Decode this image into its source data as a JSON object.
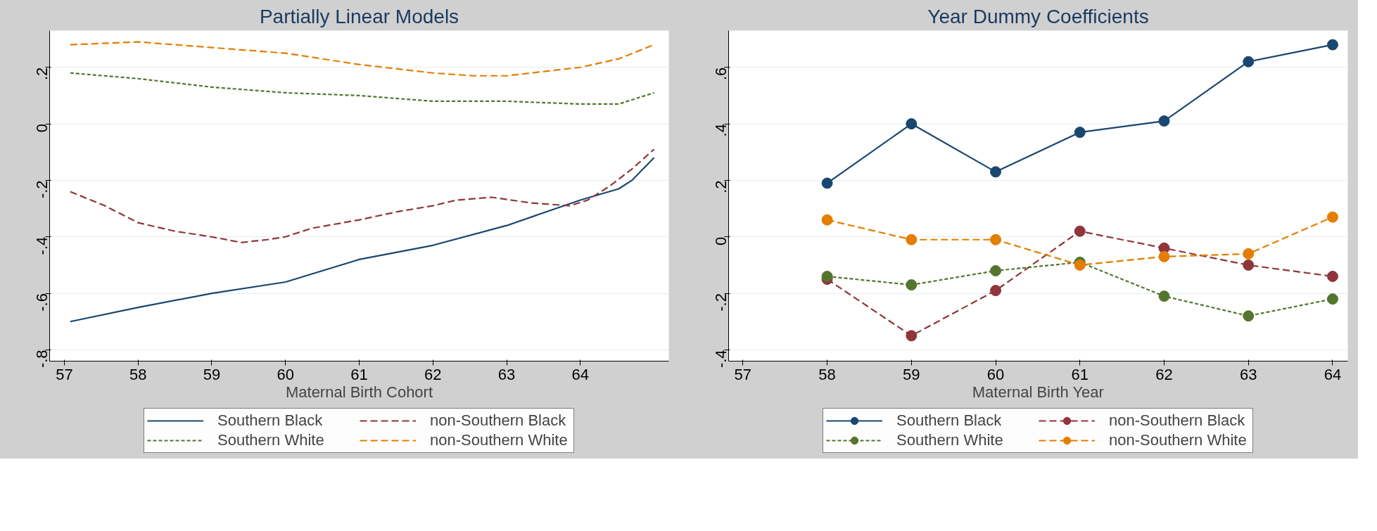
{
  "chart_data": [
    {
      "type": "line",
      "title": "Partially Linear Models",
      "xlabel": "Maternal Birth Cohort",
      "xlim": [
        56.8,
        65.2
      ],
      "xticks": [
        57,
        58,
        59,
        60,
        61,
        62,
        63,
        64
      ],
      "ylim": [
        -0.84,
        0.33
      ],
      "yticks": [
        {
          "value": -0.8,
          "label": "-.8"
        },
        {
          "value": -0.6,
          "label": "-.6"
        },
        {
          "value": -0.4,
          "label": "-.4"
        },
        {
          "value": -0.2,
          "label": "-.2"
        },
        0,
        {
          "value": 0.2,
          "label": ".2"
        }
      ],
      "grid": "y",
      "legend": "bottom",
      "marker": "none",
      "series": [
        {
          "name": "Southern Black",
          "color": "#1a476f",
          "line_style": "solid",
          "x": [
            57.08,
            58,
            59,
            60,
            61,
            62,
            63,
            64,
            64.52,
            64.7,
            64.85,
            65.0
          ],
          "values": [
            -0.7,
            -0.65,
            -0.6,
            -0.56,
            -0.48,
            -0.43,
            -0.36,
            -0.27,
            -0.23,
            -0.2,
            -0.16,
            -0.12
          ]
        },
        {
          "name": "non-Southern Black",
          "color": "#90353b",
          "line_style": "dashed",
          "x": [
            57.08,
            57.55,
            58,
            58.5,
            59,
            59.4,
            59.75,
            60,
            60.35,
            61,
            61.54,
            62,
            62.32,
            62.8,
            63.33,
            63.86,
            64.1,
            64.4,
            64.7,
            65.0
          ],
          "values": [
            -0.24,
            -0.29,
            -0.35,
            -0.38,
            -0.4,
            -0.42,
            -0.41,
            -0.4,
            -0.37,
            -0.34,
            -0.31,
            -0.29,
            -0.27,
            -0.26,
            -0.28,
            -0.29,
            -0.27,
            -0.22,
            -0.16,
            -0.09
          ]
        },
        {
          "name": "Southern White",
          "color": "#55752f",
          "line_style": "dotted",
          "x": [
            57.08,
            58,
            59,
            60,
            61,
            62,
            63,
            64,
            64.52,
            65.0
          ],
          "values": [
            0.18,
            0.16,
            0.13,
            0.11,
            0.1,
            0.08,
            0.08,
            0.07,
            0.07,
            0.11
          ]
        },
        {
          "name": "non-Southern White",
          "color": "#e37e00",
          "line_style": "dashed",
          "x": [
            57.08,
            58,
            59,
            60,
            61,
            62,
            62.55,
            63,
            64,
            64.52,
            65.0
          ],
          "values": [
            0.28,
            0.29,
            0.27,
            0.25,
            0.21,
            0.18,
            0.17,
            0.17,
            0.2,
            0.23,
            0.28
          ]
        }
      ]
    },
    {
      "type": "line",
      "title": "Year Dummy Coefficients",
      "xlabel": "Maternal Birth Year",
      "xlim": [
        56.83,
        64.18
      ],
      "xticks": [
        57,
        58,
        59,
        60,
        61,
        62,
        63,
        64
      ],
      "ylim": [
        -0.44,
        0.73
      ],
      "yticks": [
        {
          "value": -0.4,
          "label": "-.4"
        },
        {
          "value": -0.2,
          "label": "-.2"
        },
        0,
        {
          "value": 0.2,
          "label": ".2"
        },
        {
          "value": 0.4,
          "label": ".4"
        },
        {
          "value": 0.6,
          "label": ".6"
        }
      ],
      "grid": "y",
      "legend": "bottom",
      "marker": "circle",
      "x": [
        58,
        59,
        60,
        61,
        62,
        63,
        64
      ],
      "series": [
        {
          "name": "Southern Black",
          "color": "#1a476f",
          "line_style": "solid",
          "values": [
            0.19,
            0.4,
            0.23,
            0.37,
            0.41,
            0.62,
            0.68
          ]
        },
        {
          "name": "non-Southern Black",
          "color": "#90353b",
          "line_style": "dashed",
          "values": [
            -0.15,
            -0.35,
            -0.19,
            0.02,
            -0.04,
            -0.1,
            -0.14
          ]
        },
        {
          "name": "Southern White",
          "color": "#55752f",
          "line_style": "dotted",
          "values": [
            -0.14,
            -0.17,
            -0.12,
            -0.09,
            -0.21,
            -0.28,
            -0.22
          ]
        },
        {
          "name": "non-Southern White",
          "color": "#e37e00",
          "line_style": "dashed",
          "values": [
            0.06,
            -0.01,
            -0.01,
            -0.1,
            -0.07,
            -0.06,
            0.07
          ]
        }
      ]
    }
  ]
}
